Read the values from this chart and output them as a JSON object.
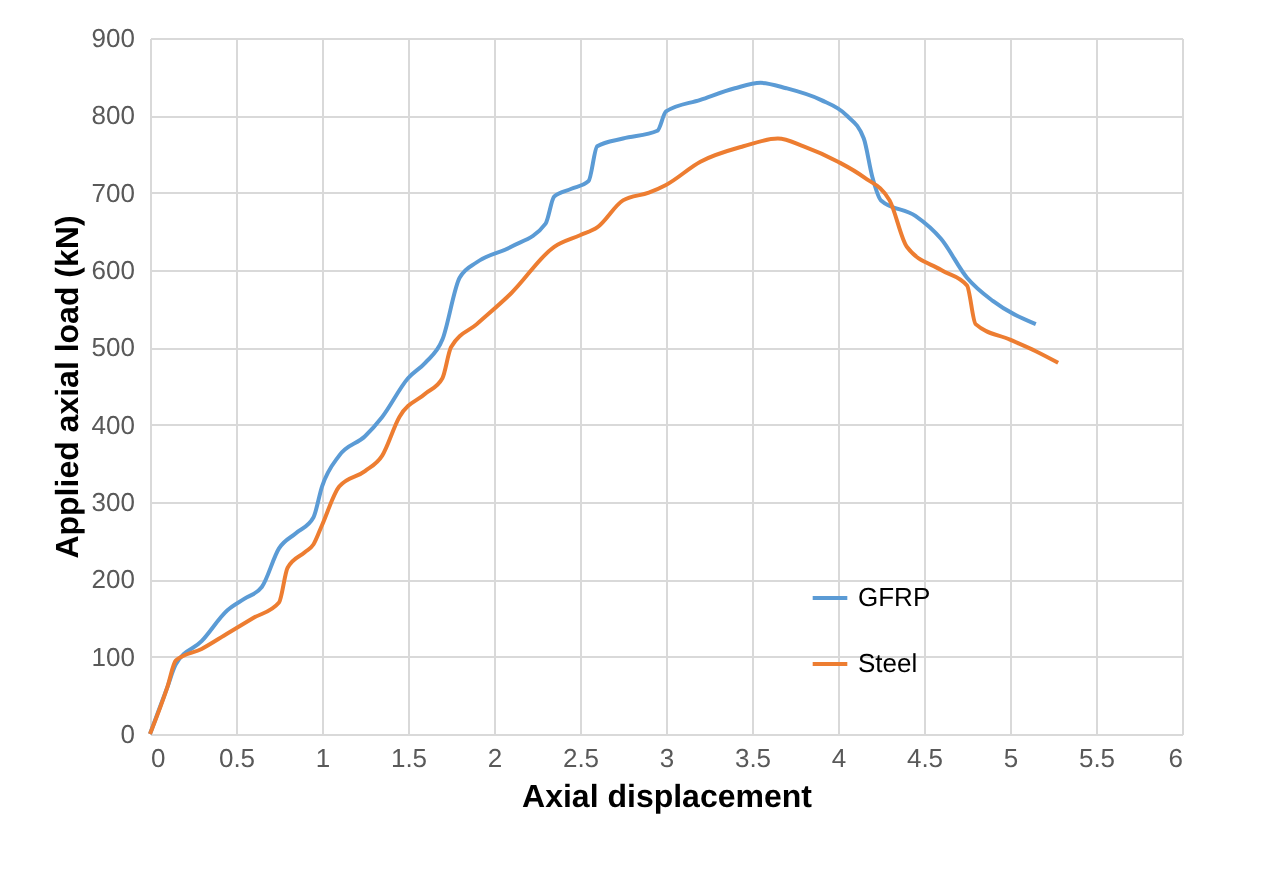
{
  "chart_data": {
    "type": "line",
    "xlabel": "Axial displacement",
    "ylabel": "Applied axial load (kN)",
    "xlim": [
      0,
      6
    ],
    "xticks": [
      0,
      0.5,
      1,
      1.5,
      2,
      2.5,
      3,
      3.5,
      4,
      4.5,
      5,
      5.5,
      6
    ],
    "ylim": [
      0,
      900
    ],
    "yticks": [
      0,
      100,
      200,
      300,
      400,
      500,
      600,
      700,
      800,
      900
    ],
    "grid": true,
    "legend": "right",
    "marker": "none",
    "line_style": "solid",
    "series": [
      {
        "name": "GFRP",
        "color": "#5b9bd5",
        "x": [
          0,
          0.1,
          0.15,
          0.3,
          0.45,
          0.55,
          0.65,
          0.75,
          0.85,
          0.95,
          1.0,
          1.1,
          1.25,
          1.35,
          1.5,
          1.6,
          1.7,
          1.8,
          1.9,
          2.1,
          2.3,
          2.35,
          2.45,
          2.55,
          2.6,
          2.75,
          2.95,
          3.0,
          3.2,
          3.4,
          3.55,
          3.7,
          3.9,
          4.05,
          4.15,
          4.2,
          4.25,
          4.45,
          4.6,
          4.75,
          4.9,
          5.15
        ],
        "values": [
          0,
          60,
          90,
          120,
          160,
          175,
          190,
          240,
          260,
          280,
          320,
          360,
          385,
          410,
          460,
          480,
          510,
          590,
          610,
          630,
          660,
          695,
          705,
          715,
          760,
          770,
          780,
          805,
          820,
          835,
          842,
          835,
          820,
          800,
          770,
          720,
          690,
          670,
          640,
          590,
          560,
          530
        ]
      },
      {
        "name": "Steel",
        "color": "#ed7d31",
        "x": [
          0,
          0.1,
          0.15,
          0.3,
          0.45,
          0.6,
          0.75,
          0.8,
          0.9,
          0.95,
          1.0,
          1.1,
          1.25,
          1.35,
          1.45,
          1.6,
          1.7,
          1.75,
          1.9,
          2.1,
          2.35,
          2.5,
          2.6,
          2.75,
          2.9,
          3.0,
          3.2,
          3.45,
          3.65,
          3.8,
          4.0,
          4.15,
          4.3,
          4.4,
          4.6,
          4.75,
          4.8,
          5.0,
          5.15,
          5.28
        ],
        "values": [
          0,
          60,
          95,
          110,
          130,
          150,
          170,
          215,
          235,
          245,
          270,
          320,
          340,
          360,
          410,
          440,
          460,
          500,
          530,
          570,
          630,
          645,
          655,
          690,
          700,
          710,
          740,
          760,
          770,
          760,
          740,
          720,
          690,
          630,
          600,
          580,
          530,
          510,
          495,
          480
        ]
      }
    ]
  }
}
